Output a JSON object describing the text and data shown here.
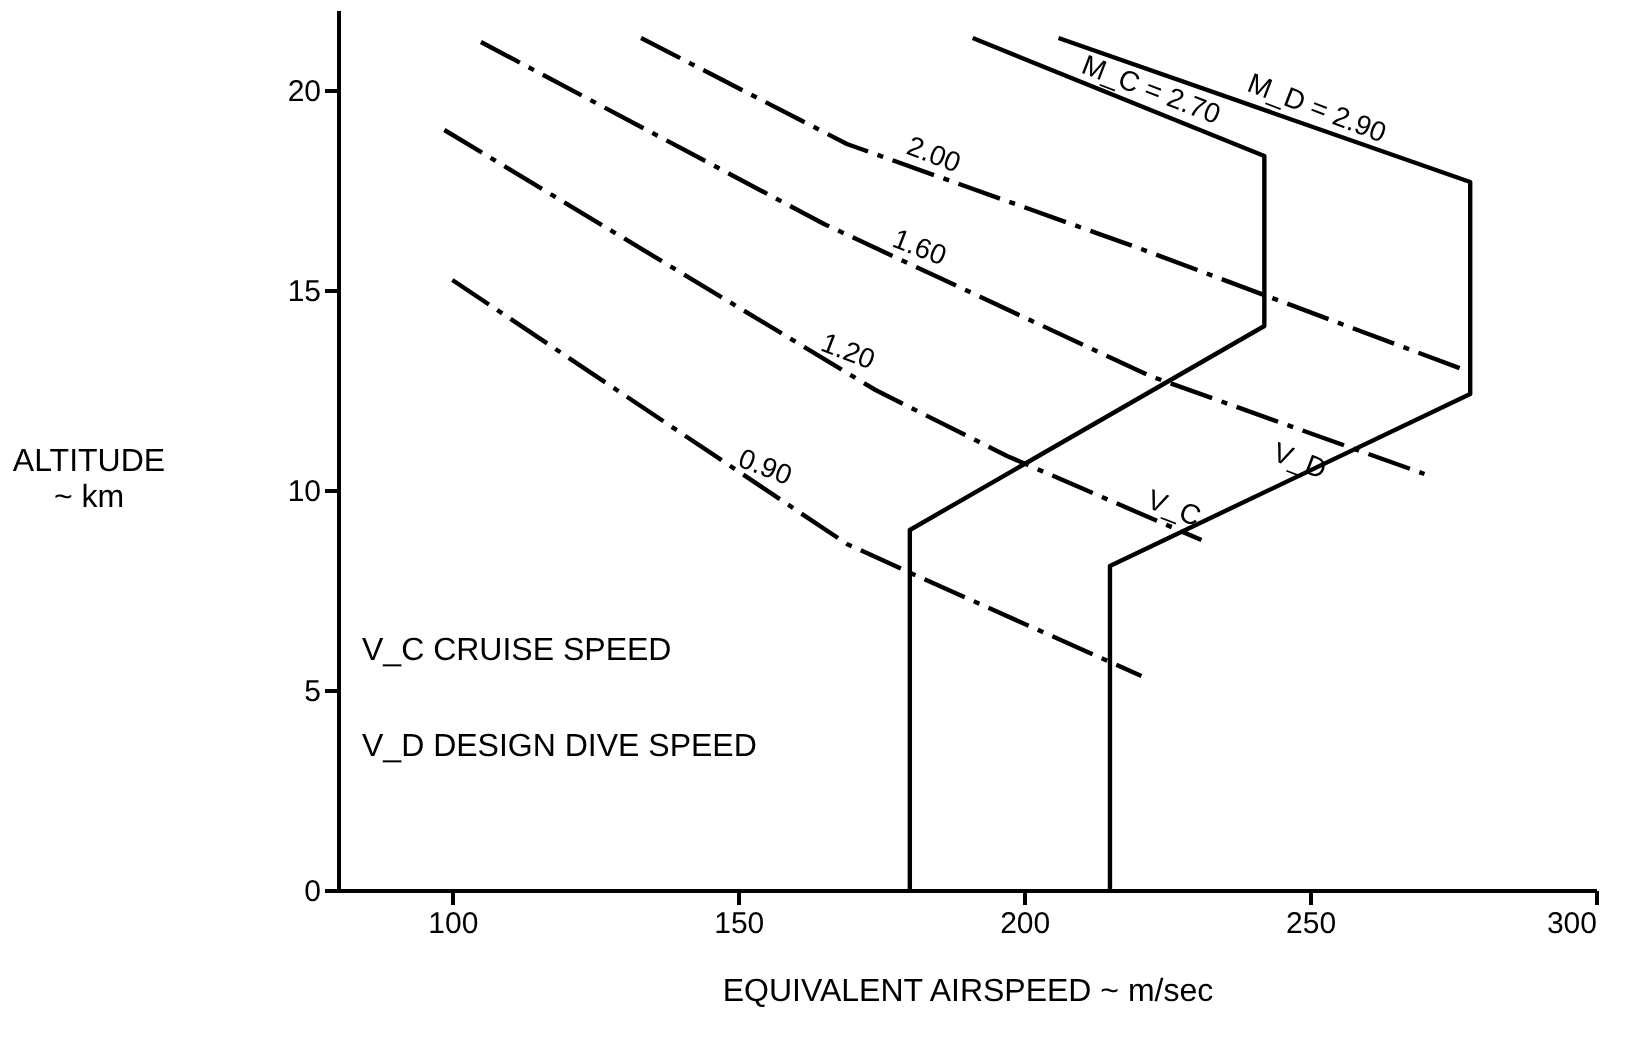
{
  "chart_data": {
    "type": "line",
    "xlabel": "EQUIVALENT AIRSPEED ~  m/sec",
    "ylabel": "ALTITUDE\n~ km",
    "xlim": [
      80,
      300
    ],
    "xticks": [
      100,
      150,
      200,
      250,
      300
    ],
    "ylim": [
      0,
      22
    ],
    "yticks": [
      0,
      5,
      10,
      15,
      20
    ],
    "grid": false,
    "marker": "none",
    "series": [
      {
        "color": "#000000",
        "line_style": "solid",
        "x": [
          180,
          180,
          242,
          242,
          191
        ],
        "values": [
          0,
          9.0,
          14.1,
          18.35,
          21.3
        ]
      },
      {
        "color": "#000000",
        "line_style": "solid",
        "x": [
          215,
          215,
          278,
          278,
          206
        ],
        "values": [
          0,
          8.1,
          12.4,
          17.7,
          21.3
        ]
      },
      {
        "color": "#000000",
        "line_style": "dashed",
        "x": [
          133,
          169,
          220,
          277
        ],
        "values": [
          21.3,
          18.65,
          16.05,
          13.0
        ]
      },
      {
        "color": "#000000",
        "line_style": "dashed",
        "x": [
          105,
          165,
          222,
          270
        ],
        "values": [
          21.2,
          16.65,
          12.85,
          10.4
        ]
      },
      {
        "color": "#000000",
        "line_style": "dashed",
        "x": [
          98.6,
          174,
          197,
          231
        ],
        "values": [
          19.0,
          12.5,
          10.85,
          8.75
        ]
      },
      {
        "color": "#000000",
        "line_style": "dashed",
        "x": [
          100,
          169,
          180.5,
          220.5
        ],
        "values": [
          15.25,
          8.65,
          7.9,
          5.35
        ]
      }
    ],
    "annotations": [
      {
        "text": "2.00",
        "x": 183,
        "y": 17.94
      },
      {
        "text": "1.60",
        "x": 180.5,
        "y": 15.62
      },
      {
        "text": "1.20",
        "x": 168,
        "y": 13.02
      },
      {
        "text": "0.90",
        "x": 153.5,
        "y": 10.13
      },
      {
        "text": "M_C = 2.70",
        "x": 221,
        "y": 19.56
      },
      {
        "text": "M_D = 2.90",
        "x": 250,
        "y": 19.1
      },
      {
        "text": "V_C",
        "x": 225,
        "y": 9.1
      },
      {
        "text": "V_D",
        "x": 247,
        "y": 10.28
      },
      "V_C  CRUISE SPEED",
      "V_D  DESIGN DIVE SPEED"
    ]
  }
}
